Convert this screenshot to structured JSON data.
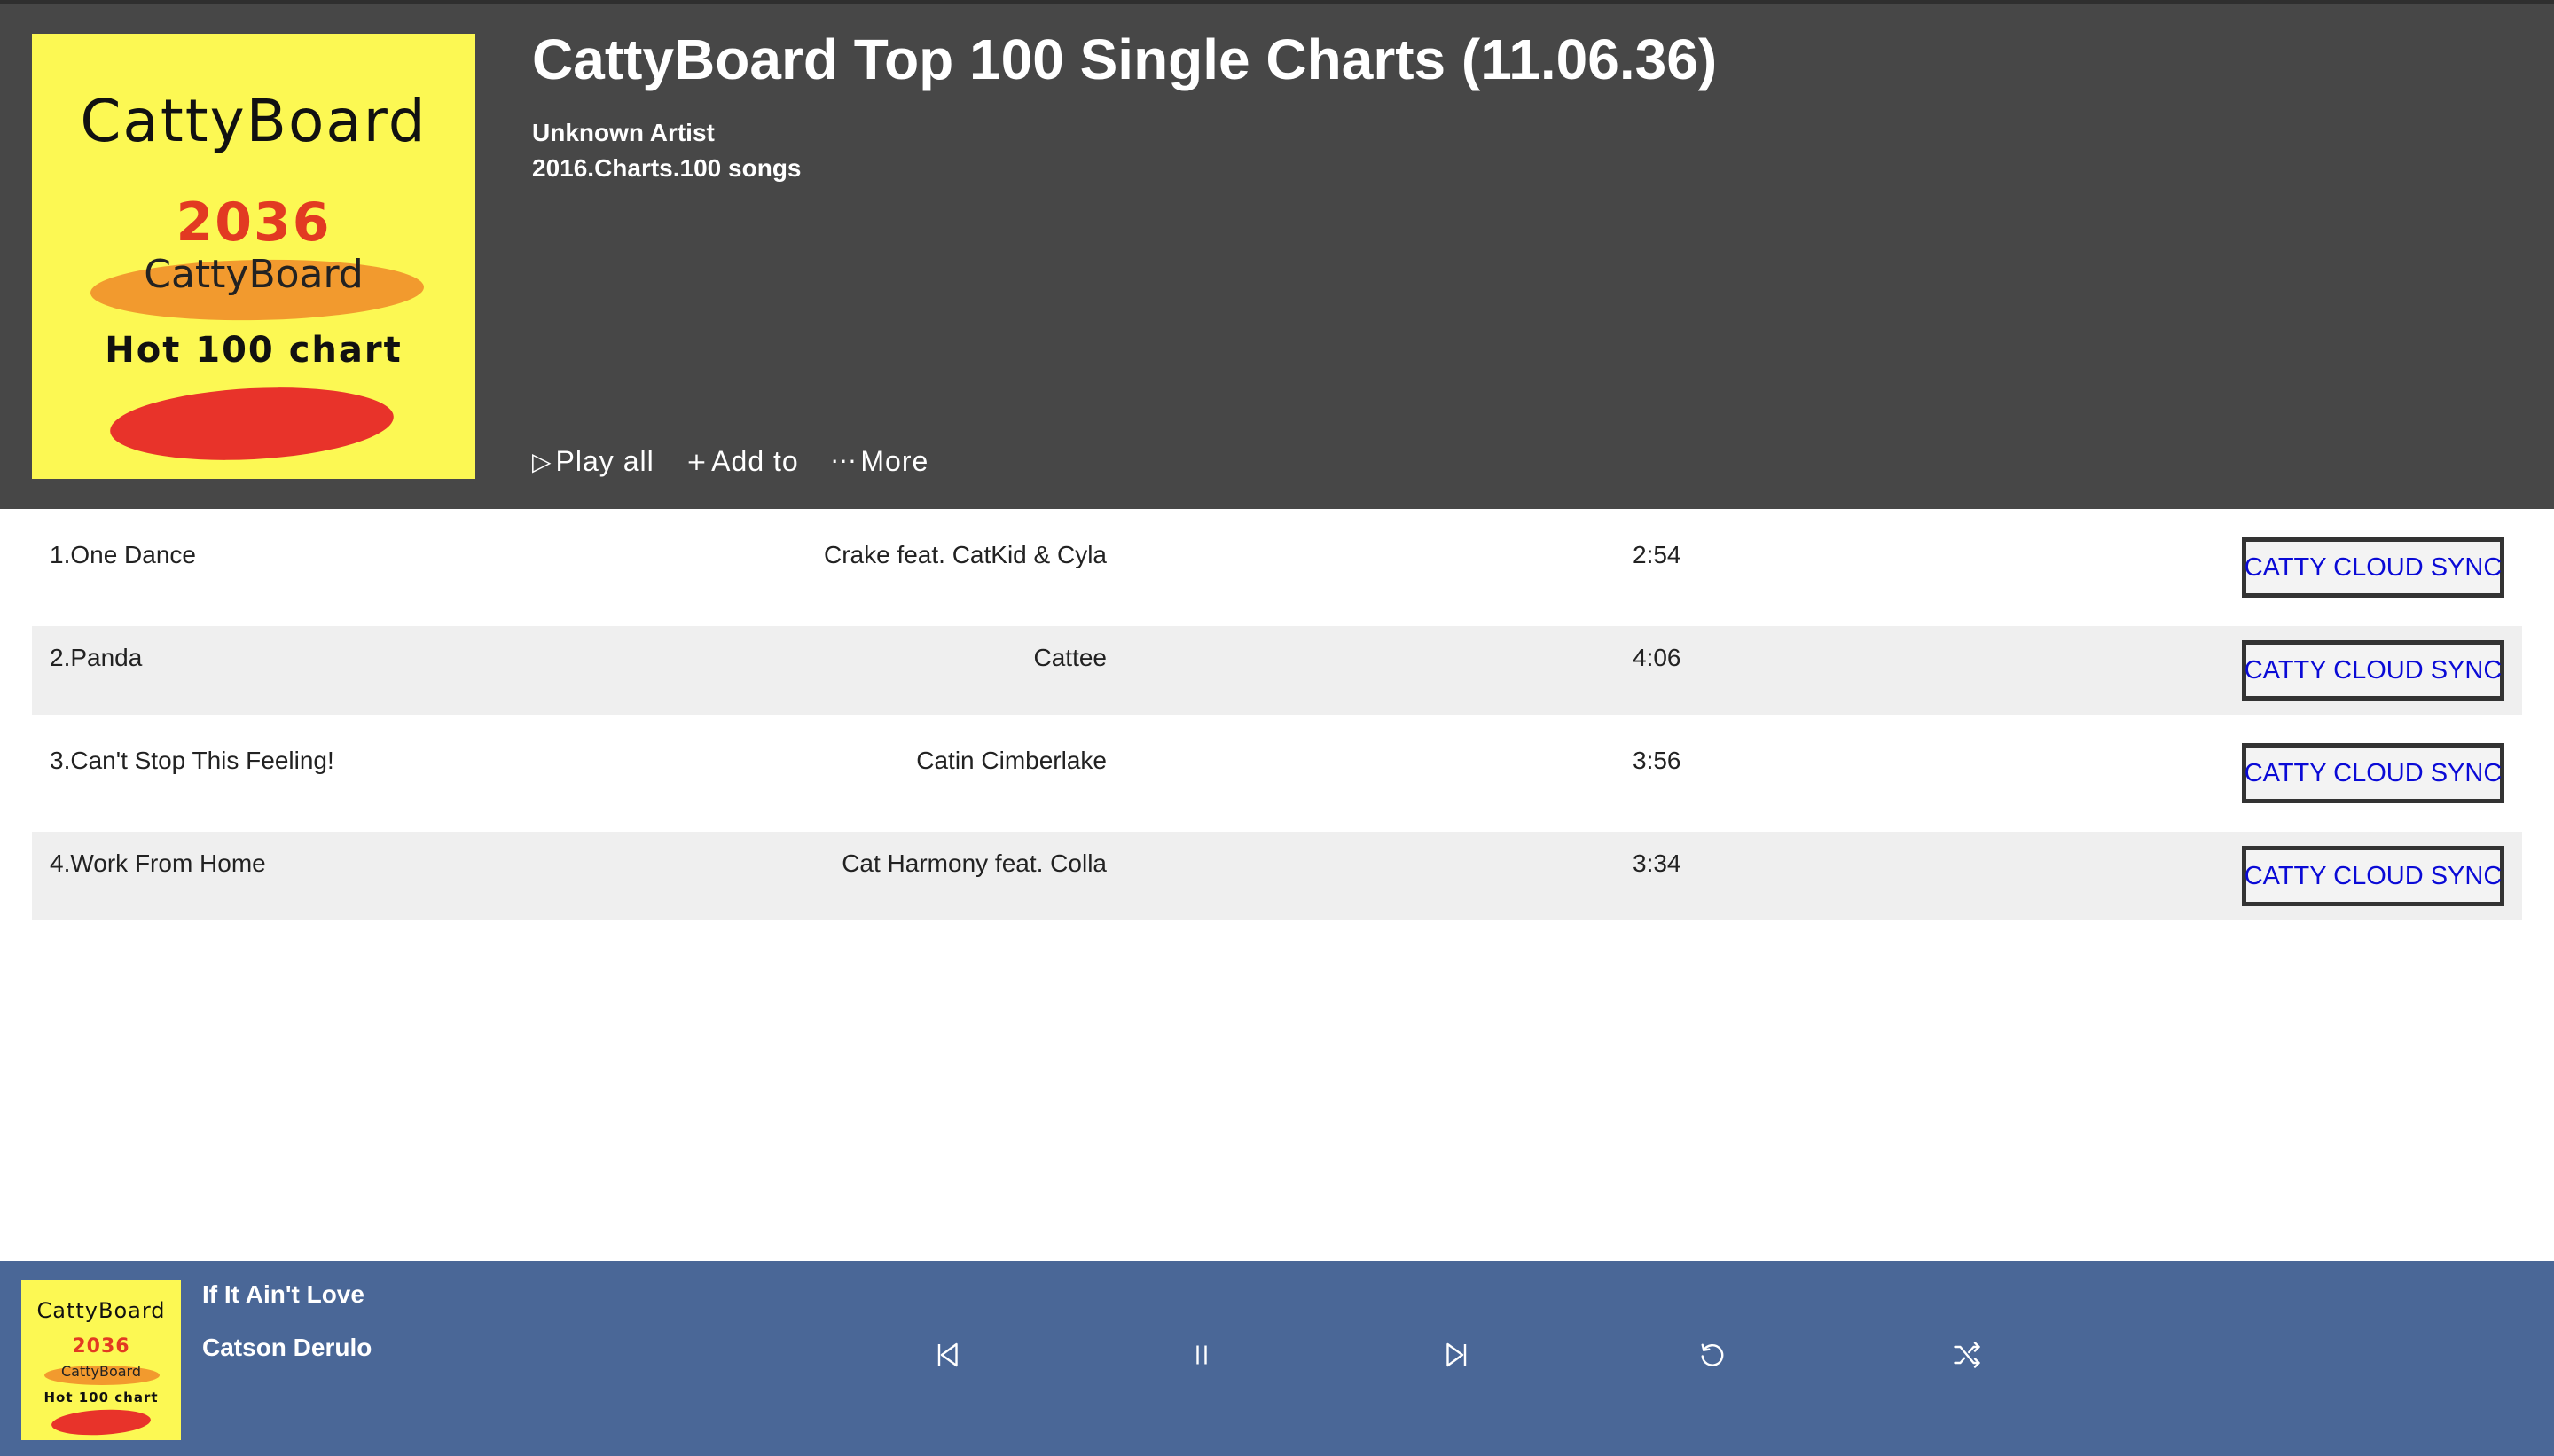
{
  "album": {
    "title": "CattyBoard Top 100 Single Charts (11.06.36)",
    "artist": "Unknown Artist",
    "meta": "2016.Charts.100 songs",
    "cover": {
      "brand": "CattyBoard",
      "year": "2036",
      "subtitle": "CattyBoard",
      "tagline": "Hot 100 chart",
      "colors": {
        "background": "#fcf853",
        "year": "#e23a22",
        "orange_stroke": "#f29a2e",
        "red_stroke": "#e8332a"
      }
    }
  },
  "actions": {
    "play_all": {
      "icon": "play-outline-icon",
      "glyph": "▷",
      "label": "Play all"
    },
    "add_to": {
      "icon": "plus-icon",
      "glyph": "+",
      "label": "Add to"
    },
    "more": {
      "icon": "ellipsis-icon",
      "glyph": "···",
      "label": "More"
    }
  },
  "tracks": [
    {
      "title": "1.One Dance",
      "artist": "Crake feat. CatKid & Cyla",
      "duration": "2:54",
      "sync_label": "CATTY CLOUD SYNC"
    },
    {
      "title": "2.Panda",
      "artist": "Cattee",
      "duration": "4:06",
      "sync_label": "CATTY CLOUD SYNC"
    },
    {
      "title": "3.Can't Stop This Feeling!",
      "artist": "Catin Cimberlake",
      "duration": "3:56",
      "sync_label": "CATTY CLOUD SYNC"
    },
    {
      "title": "4.Work From Home",
      "artist": "Cat Harmony feat. Colla",
      "duration": "3:34",
      "sync_label": "CATTY CLOUD SYNC"
    }
  ],
  "player": {
    "now_playing": {
      "title": "If It Ain't Love",
      "artist": "Catson Derulo"
    },
    "controls": [
      "previous-icon",
      "pause-icon",
      "next-icon",
      "repeat-icon",
      "shuffle-icon"
    ]
  },
  "colors": {
    "header_bg": "#474747",
    "player_bg": "#4a6797",
    "row_alt_bg": "#efefef",
    "sync_text": "#0a0ad6"
  }
}
